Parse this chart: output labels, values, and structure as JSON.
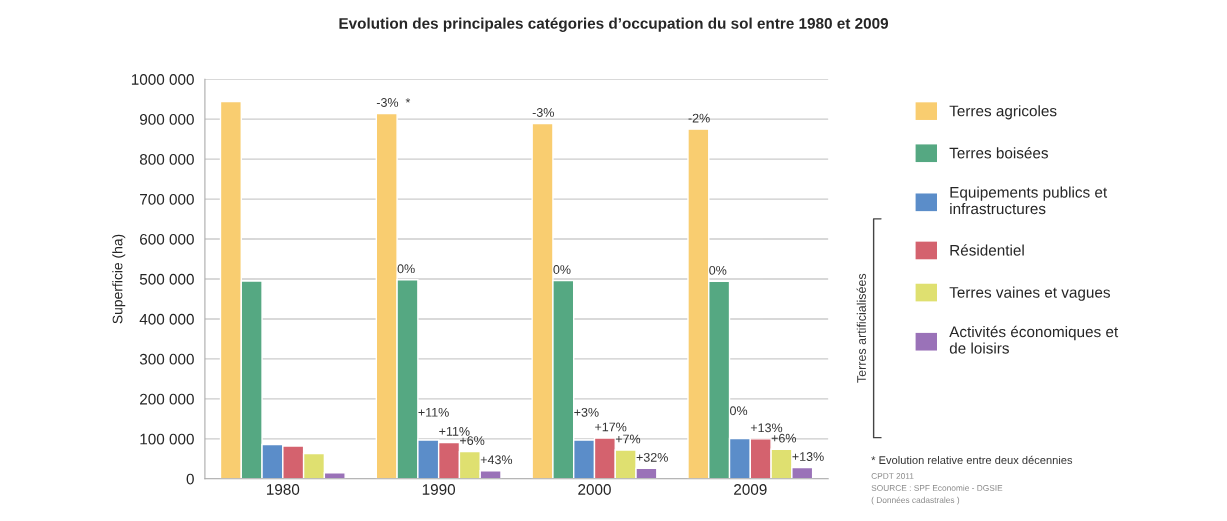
{
  "chart_data": {
    "type": "bar",
    "title": "Evolution des principales catégories d’occupation du sol entre 1980 et 2009",
    "ylabel": "Superficie (ha)",
    "categories": [
      "1980",
      "1990",
      "2000",
      "2009"
    ],
    "series": [
      {
        "name": "Terres agricoles",
        "color": "#f9cd70",
        "values": [
          944000,
          914000,
          889000,
          875000
        ]
      },
      {
        "name": "Terres boisées",
        "color": "#55a882",
        "values": [
          495000,
          498000,
          496000,
          494000
        ]
      },
      {
        "name": "Equipements publics et\ninfrastructures",
        "color": "#5b8dc9",
        "values": [
          86000,
          97000,
          97000,
          101000
        ]
      },
      {
        "name": "Résidentiel",
        "color": "#d4626e",
        "values": [
          82000,
          91000,
          102000,
          100000
        ]
      },
      {
        "name": "Terres vaines et vagues",
        "color": "#dfe070",
        "values": [
          63000,
          68000,
          72000,
          74000
        ]
      },
      {
        "name": "Activités économiques et\nde loisirs",
        "color": "#9a72b8",
        "values": [
          15000,
          20000,
          26000,
          28000
        ]
      }
    ],
    "ylim": [
      0,
      1000000
    ],
    "yticks": [
      {
        "value": 0,
        "label": "0"
      },
      {
        "value": 100000,
        "label": "100 000"
      },
      {
        "value": 200000,
        "label": "200 000"
      },
      {
        "value": 300000,
        "label": "300 000"
      },
      {
        "value": 400000,
        "label": "400 000"
      },
      {
        "value": 500000,
        "label": "500 000"
      },
      {
        "value": 600000,
        "label": "600 000"
      },
      {
        "value": 700000,
        "label": "700 000"
      },
      {
        "value": 800000,
        "label": "800 000"
      },
      {
        "value": 900000,
        "label": "900 000"
      },
      {
        "value": 1000000,
        "label": "1000 000"
      }
    ],
    "grid": "y",
    "legend": "right",
    "annotations": [
      "-3%  *",
      "-3%",
      "-2%",
      "0%",
      "0%",
      "0%",
      "+11%",
      "+3%",
      "0%",
      "+11%",
      "+17%",
      "+13%",
      "+6%",
      "+7%",
      "+6%",
      "+43%",
      "+32%",
      "+13%",
      "Terres artificialisées",
      "* Evolution relative entre deux décennies",
      "CPDT 2011",
      "SOURCE : SPF Economie - DGSIE",
      "( Données cadastrales )"
    ]
  }
}
